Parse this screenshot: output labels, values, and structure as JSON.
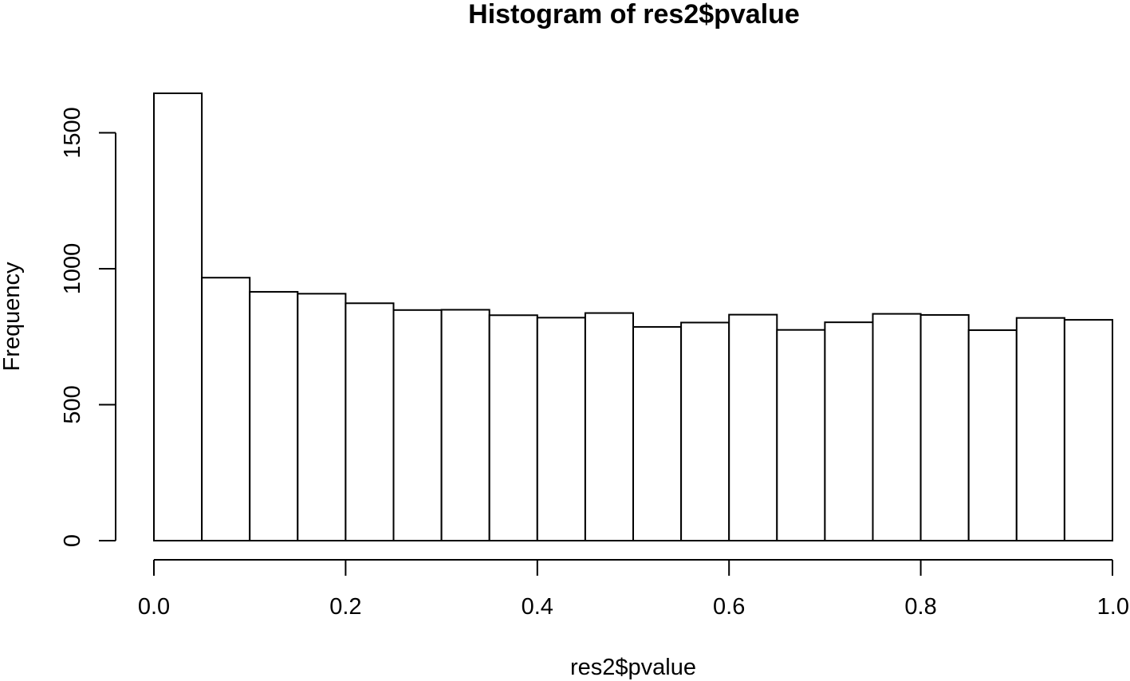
{
  "chart_data": {
    "type": "histogram",
    "title": "Histogram of res2$pvalue",
    "xlabel": "res2$pvalue",
    "ylabel": "Frequency",
    "breaks": [
      0.0,
      0.05,
      0.1,
      0.15,
      0.2,
      0.25,
      0.3,
      0.35,
      0.4,
      0.45,
      0.5,
      0.55,
      0.6,
      0.65,
      0.7,
      0.75,
      0.8,
      0.85,
      0.9,
      0.95,
      1.0
    ],
    "counts": [
      1645,
      967,
      915,
      908,
      873,
      848,
      849,
      829,
      820,
      837,
      786,
      802,
      831,
      775,
      803,
      834,
      830,
      774,
      819,
      812
    ],
    "xlim": [
      0,
      1
    ],
    "ylim": [
      0,
      1645
    ],
    "x_ticks": [
      {
        "value": 0.0,
        "label": "0.0"
      },
      {
        "value": 0.2,
        "label": "0.2"
      },
      {
        "value": 0.4,
        "label": "0.4"
      },
      {
        "value": 0.6,
        "label": "0.6"
      },
      {
        "value": 0.8,
        "label": "0.8"
      },
      {
        "value": 1.0,
        "label": "1.0"
      }
    ],
    "y_ticks": [
      {
        "value": 0,
        "label": "0"
      },
      {
        "value": 500,
        "label": "500"
      },
      {
        "value": 1000,
        "label": "1000"
      },
      {
        "value": 1500,
        "label": "1500"
      }
    ],
    "bar_fill": "#ffffff",
    "bar_stroke": "#000000"
  }
}
